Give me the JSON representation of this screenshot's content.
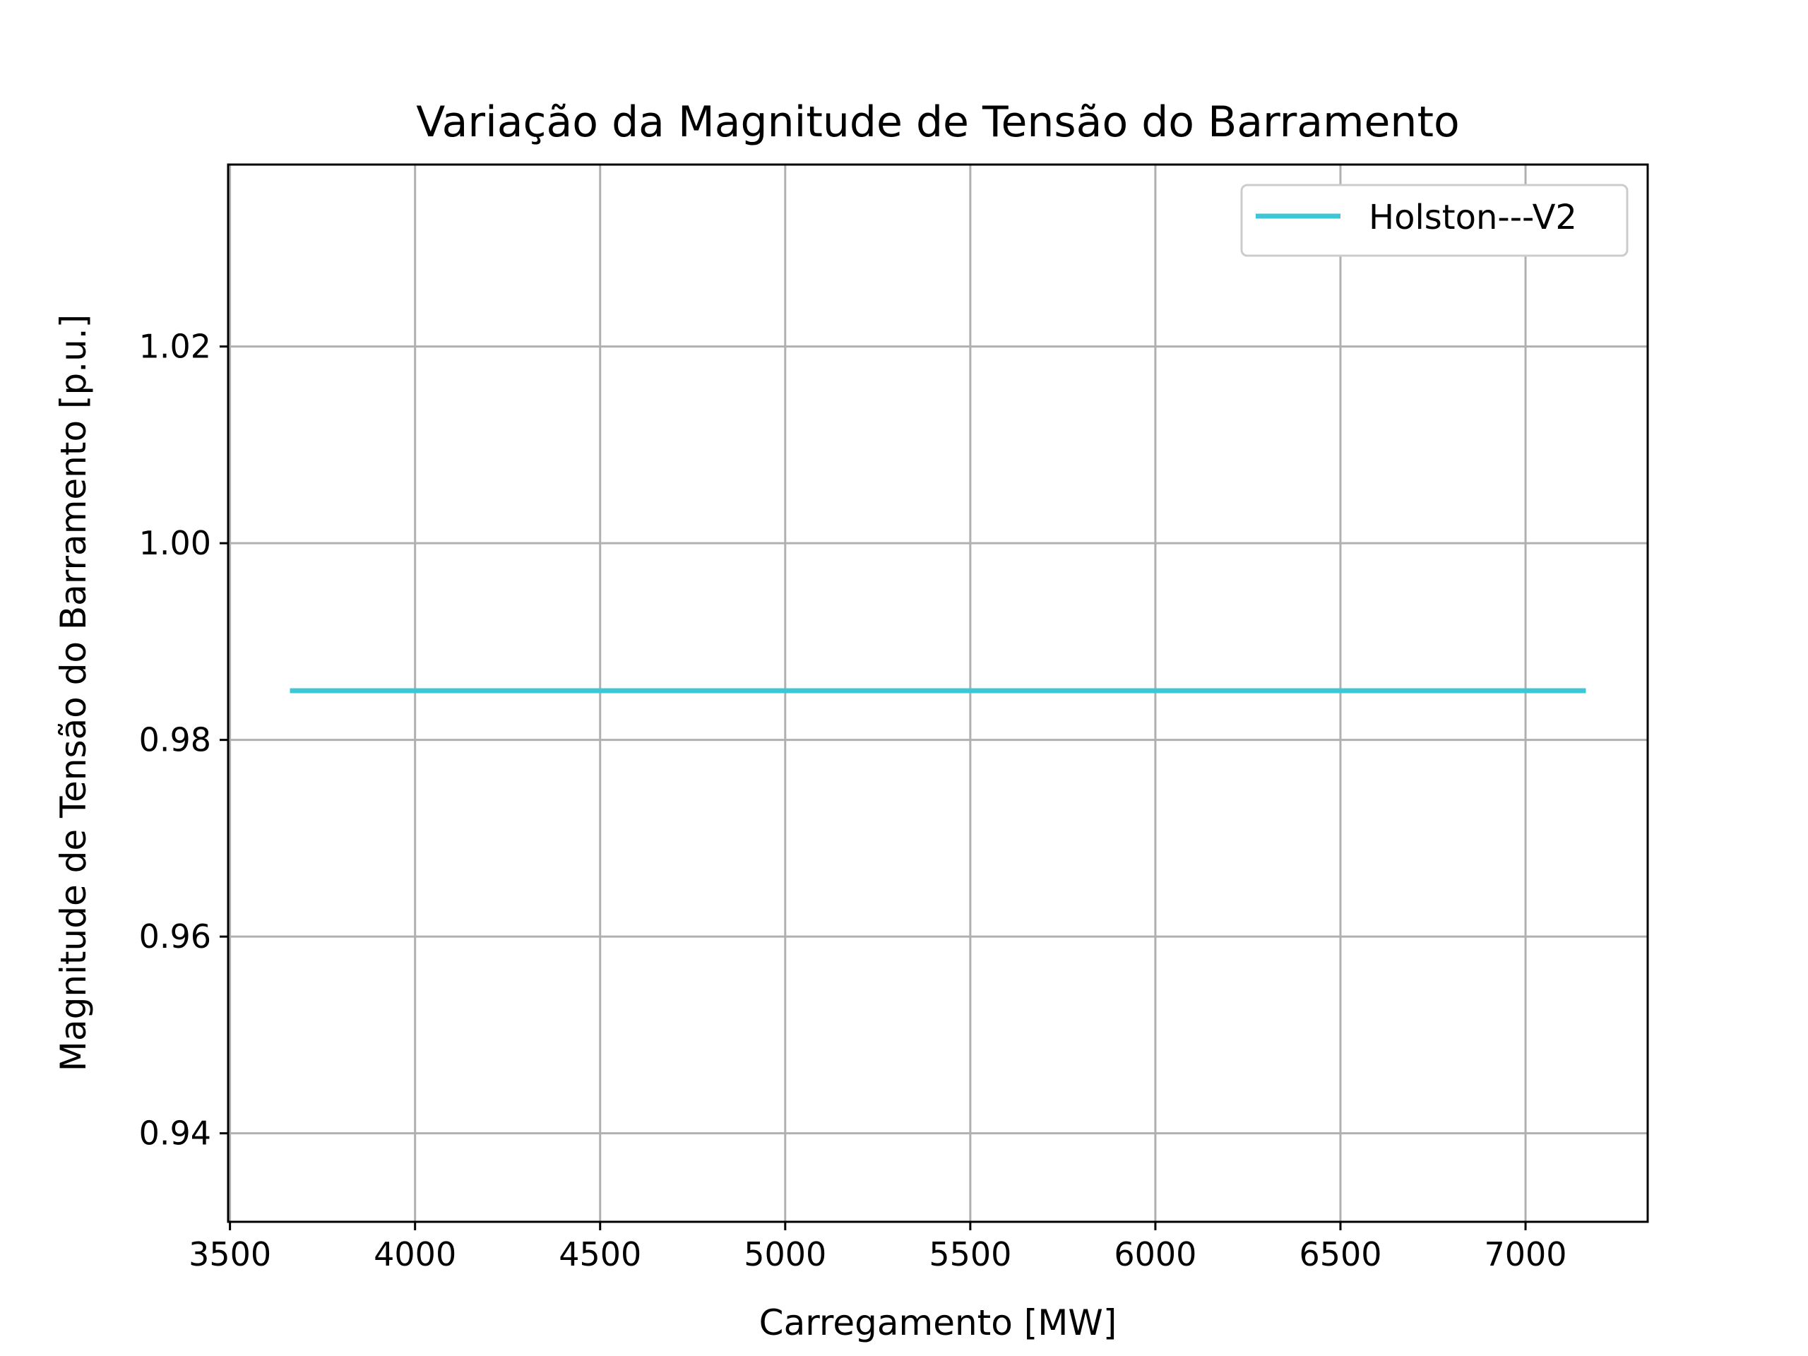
{
  "chart_data": {
    "type": "line",
    "title": "Variação da Magnitude de Tensão do Barramento",
    "xlabel": "Carregamento [MW]",
    "ylabel": "Magnitude de Tensão do Barramento [p.u.]",
    "xlim": [
      3495,
      7330
    ],
    "ylim": [
      0.931,
      1.0385
    ],
    "xticks": [
      3500,
      4000,
      4500,
      5000,
      5500,
      6000,
      6500,
      7000
    ],
    "yticks": [
      0.94,
      0.96,
      0.98,
      1.0,
      1.02
    ],
    "xtick_labels": [
      "3500",
      "4000",
      "4500",
      "5000",
      "5500",
      "6000",
      "6500",
      "7000"
    ],
    "ytick_labels": [
      "0.94",
      "0.96",
      "0.98",
      "1.00",
      "1.02"
    ],
    "grid": true,
    "legend_position": "top-right",
    "series": [
      {
        "name": "Holston---V2",
        "color": "#3ec5d6",
        "x": [
          3662,
          7163
        ],
        "y": [
          0.985,
          0.985
        ]
      }
    ]
  }
}
